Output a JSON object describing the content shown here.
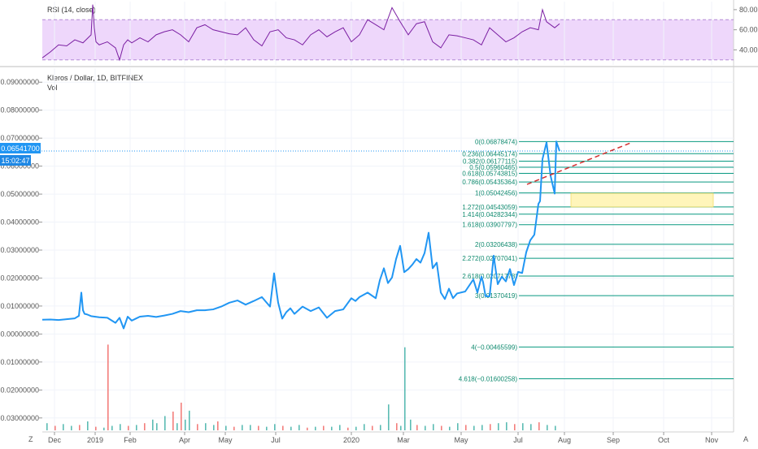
{
  "header": {
    "rsi_title": "RSI (14, close)",
    "symbol": "Kleros / Dollar, 1D, BITFINEX",
    "vol_label": "Vol"
  },
  "colors": {
    "price": "#2196f3",
    "rsi": "#7b1fa2",
    "rsi_band": "#eed7fb",
    "fib": "#089981",
    "trend": "#d32f2f",
    "zone": "#fff5b3",
    "vol_up": "#26a69a",
    "vol_down": "#ef5350"
  },
  "price_label": {
    "value": "0.06541700",
    "time": "15:02:47"
  },
  "footer": {
    "left_button": "Z",
    "right_button": "A"
  },
  "chart_data": [
    {
      "type": "line",
      "id": "rsi",
      "title": "RSI (14, close)",
      "ylim": [
        25,
        88
      ],
      "y_ticks": [
        "80.00",
        "60.00",
        "40.00"
      ],
      "y_tick_values": [
        80,
        60,
        40
      ],
      "band": [
        30,
        70
      ],
      "x": [
        0,
        10,
        20,
        30,
        40,
        50,
        60,
        62,
        64,
        66,
        70,
        80,
        90,
        95,
        100,
        105,
        110,
        120,
        130,
        140,
        150,
        160,
        170,
        180,
        190,
        200,
        210,
        220,
        230,
        240,
        250,
        260,
        270,
        280,
        290,
        300,
        310,
        320,
        330,
        340,
        350,
        360,
        370,
        380,
        390,
        400,
        410,
        420,
        430,
        440,
        450,
        460,
        470,
        480,
        490,
        500,
        510,
        520,
        530,
        540,
        550,
        560,
        570,
        580,
        590,
        600,
        610,
        615,
        620,
        630,
        636
      ],
      "values": [
        32,
        38,
        45,
        44,
        50,
        47,
        55,
        85,
        62,
        48,
        45,
        48,
        42,
        30,
        45,
        50,
        47,
        52,
        48,
        55,
        58,
        60,
        55,
        48,
        62,
        65,
        60,
        58,
        56,
        55,
        62,
        50,
        44,
        58,
        60,
        52,
        50,
        45,
        55,
        60,
        53,
        58,
        62,
        48,
        55,
        70,
        65,
        60,
        82,
        68,
        55,
        66,
        68,
        48,
        42,
        55,
        54,
        52,
        50,
        45,
        62,
        55,
        48,
        52,
        58,
        62,
        60,
        80,
        68,
        62,
        66
      ]
    },
    {
      "type": "line",
      "id": "price",
      "title": "Kleros / Dollar, 1D, BITFINEX",
      "ylim": [
        -0.035,
        0.095
      ],
      "y_ticks": [
        "0.09000000",
        "0.08000000",
        "0.07000000",
        "0.06000000",
        "0.05000000",
        "0.04000000",
        "0.03000000",
        "0.02000000",
        "0.01000000",
        "-0.00000000",
        "-0.01000000",
        "-0.02000000",
        "-0.03000000"
      ],
      "y_tick_values": [
        0.09,
        0.08,
        0.07,
        0.06,
        0.05,
        0.04,
        0.03,
        0.02,
        0.01,
        0.0,
        -0.01,
        -0.02,
        -0.03
      ],
      "x_ticks": [
        "Dec",
        "2019",
        "Feb",
        "Apr",
        "May",
        "Jul",
        "2020",
        "Mar",
        "May",
        "Jul",
        "Aug",
        "Sep",
        "Oct",
        "Nov"
      ],
      "x_tick_values": [
        15,
        65,
        108,
        175,
        225,
        287,
        380,
        444,
        515,
        585,
        642,
        702,
        764,
        823
      ],
      "x": [
        0,
        10,
        20,
        30,
        40,
        45,
        48,
        50,
        52,
        55,
        60,
        70,
        80,
        90,
        95,
        100,
        105,
        110,
        115,
        120,
        130,
        140,
        150,
        160,
        170,
        180,
        190,
        200,
        210,
        220,
        230,
        240,
        250,
        260,
        270,
        280,
        285,
        290,
        295,
        300,
        305,
        310,
        320,
        330,
        340,
        350,
        360,
        370,
        380,
        385,
        390,
        400,
        410,
        415,
        420,
        425,
        430,
        435,
        440,
        445,
        450,
        455,
        460,
        465,
        470,
        475,
        480,
        485,
        490,
        495,
        500,
        505,
        510,
        520,
        530,
        535,
        540,
        542,
        545,
        550,
        555,
        560,
        565,
        570,
        575,
        580,
        585,
        590,
        595,
        600,
        605,
        610,
        612,
        615,
        620,
        625,
        630,
        632,
        636
      ],
      "values": [
        0.0051,
        0.0052,
        0.005,
        0.0053,
        0.0056,
        0.0065,
        0.0148,
        0.0085,
        0.0072,
        0.007,
        0.0064,
        0.006,
        0.0058,
        0.004,
        0.0058,
        0.002,
        0.0062,
        0.0048,
        0.0055,
        0.0062,
        0.0065,
        0.0061,
        0.0066,
        0.0072,
        0.0082,
        0.0078,
        0.0085,
        0.0085,
        0.0088,
        0.0098,
        0.0112,
        0.012,
        0.0105,
        0.0118,
        0.0132,
        0.0098,
        0.0217,
        0.0112,
        0.0055,
        0.0078,
        0.0092,
        0.0072,
        0.0098,
        0.0082,
        0.0095,
        0.0058,
        0.0082,
        0.0088,
        0.0128,
        0.0118,
        0.0132,
        0.0148,
        0.0128,
        0.0192,
        0.0235,
        0.0182,
        0.0202,
        0.0268,
        0.0315,
        0.0221,
        0.0232,
        0.0248,
        0.0268,
        0.0255,
        0.0289,
        0.0362,
        0.0235,
        0.0255,
        0.0148,
        0.0125,
        0.0162,
        0.0128,
        0.0145,
        0.0152,
        0.0195,
        0.0148,
        0.0205,
        0.0185,
        0.0135,
        0.0135,
        0.028,
        0.0178,
        0.0205,
        0.0188,
        0.0232,
        0.0175,
        0.0222,
        0.0218,
        0.0292,
        0.0335,
        0.0355,
        0.0465,
        0.0475,
        0.0625,
        0.0685,
        0.0565,
        0.0502,
        0.0688,
        0.0654
      ]
    },
    {
      "type": "bar",
      "id": "volume",
      "title": "Vol",
      "ylim": [
        0,
        1
      ],
      "x": [
        5,
        15,
        25,
        35,
        45,
        55,
        65,
        75,
        80,
        85,
        95,
        105,
        115,
        125,
        135,
        140,
        150,
        160,
        165,
        170,
        175,
        180,
        190,
        200,
        210,
        215,
        225,
        235,
        245,
        255,
        265,
        275,
        285,
        295,
        305,
        315,
        325,
        335,
        345,
        355,
        365,
        375,
        385,
        395,
        405,
        415,
        425,
        435,
        440,
        445,
        452,
        460,
        470,
        480,
        490,
        500,
        510,
        520,
        530,
        540,
        550,
        560,
        570,
        580,
        590,
        600,
        610,
        620,
        630
      ],
      "values": [
        0.08,
        0.05,
        0.07,
        0.05,
        0.06,
        0.1,
        0.04,
        0.03,
        0.96,
        0.05,
        0.07,
        0.05,
        0.06,
        0.08,
        0.12,
        0.08,
        0.16,
        0.21,
        0.08,
        0.31,
        0.12,
        0.22,
        0.07,
        0.08,
        0.06,
        0.1,
        0.05,
        0.04,
        0.06,
        0.06,
        0.05,
        0.04,
        0.07,
        0.05,
        0.04,
        0.06,
        0.03,
        0.04,
        0.05,
        0.04,
        0.06,
        0.03,
        0.04,
        0.07,
        0.05,
        0.06,
        0.29,
        0.08,
        0.05,
        0.93,
        0.12,
        0.06,
        0.05,
        0.07,
        0.05,
        0.04,
        0.08,
        0.06,
        0.05,
        0.06,
        0.07,
        0.08,
        0.09,
        0.07,
        0.08,
        0.07,
        0.09,
        0.06,
        0.05
      ],
      "up": [
        true,
        false,
        true,
        true,
        false,
        true,
        false,
        true,
        false,
        true,
        true,
        false,
        true,
        false,
        true,
        true,
        true,
        false,
        true,
        false,
        true,
        true,
        false,
        true,
        true,
        false,
        true,
        false,
        true,
        true,
        false,
        true,
        true,
        false,
        true,
        true,
        false,
        true,
        false,
        true,
        true,
        false,
        true,
        true,
        false,
        true,
        true,
        false,
        true,
        true,
        true,
        false,
        true,
        true,
        false,
        true,
        true,
        false,
        true,
        true,
        false,
        true,
        true,
        false,
        true,
        true,
        false,
        true,
        true
      ]
    }
  ],
  "fib_levels": [
    {
      "ratio": 0,
      "value": 0.06878474,
      "label": "0(0.06878474)"
    },
    {
      "ratio": 0.236,
      "value": 0.06445174,
      "label": "0.236(0.06445174)"
    },
    {
      "ratio": 0.382,
      "value": 0.06177115,
      "label": "0.382(0.06177115)"
    },
    {
      "ratio": 0.5,
      "value": 0.05960465,
      "label": "0.5(0.05960465)"
    },
    {
      "ratio": 0.618,
      "value": 0.05743815,
      "label": "0.618(0.05743815)"
    },
    {
      "ratio": 0.786,
      "value": 0.05435364,
      "label": "0.786(0.05435364)"
    },
    {
      "ratio": 1,
      "value": 0.05042456,
      "label": "1(0.05042456)"
    },
    {
      "ratio": 1.272,
      "value": 0.04543059,
      "label": "1.272(0.04543059)"
    },
    {
      "ratio": 1.414,
      "value": 0.04282344,
      "label": "1.414(0.04282344)"
    },
    {
      "ratio": 1.618,
      "value": 0.03907797,
      "label": "1.618(0.03907797)"
    },
    {
      "ratio": 2,
      "value": 0.03206438,
      "label": "2(0.03206438)"
    },
    {
      "ratio": 2.272,
      "value": 0.02707041,
      "label": "2.272(0.02707041)"
    },
    {
      "ratio": 2.618,
      "value": 0.02071778,
      "label": "2.618(0.02071778)"
    },
    {
      "ratio": 3,
      "value": 0.01370419,
      "label": "3(0.01370419)"
    },
    {
      "ratio": 4,
      "value": -0.00465599,
      "label": "4(−0.00465599)"
    },
    {
      "ratio": 4.618,
      "value": -0.01600258,
      "label": "4.618(−0.01600258)"
    }
  ],
  "trend_line": {
    "x": [
      596,
      725
    ],
    "values": [
      0.0535,
      0.0685
    ]
  },
  "target_zone": {
    "x": [
      650,
      825
    ],
    "values": [
      0.0454,
      0.0503
    ]
  }
}
